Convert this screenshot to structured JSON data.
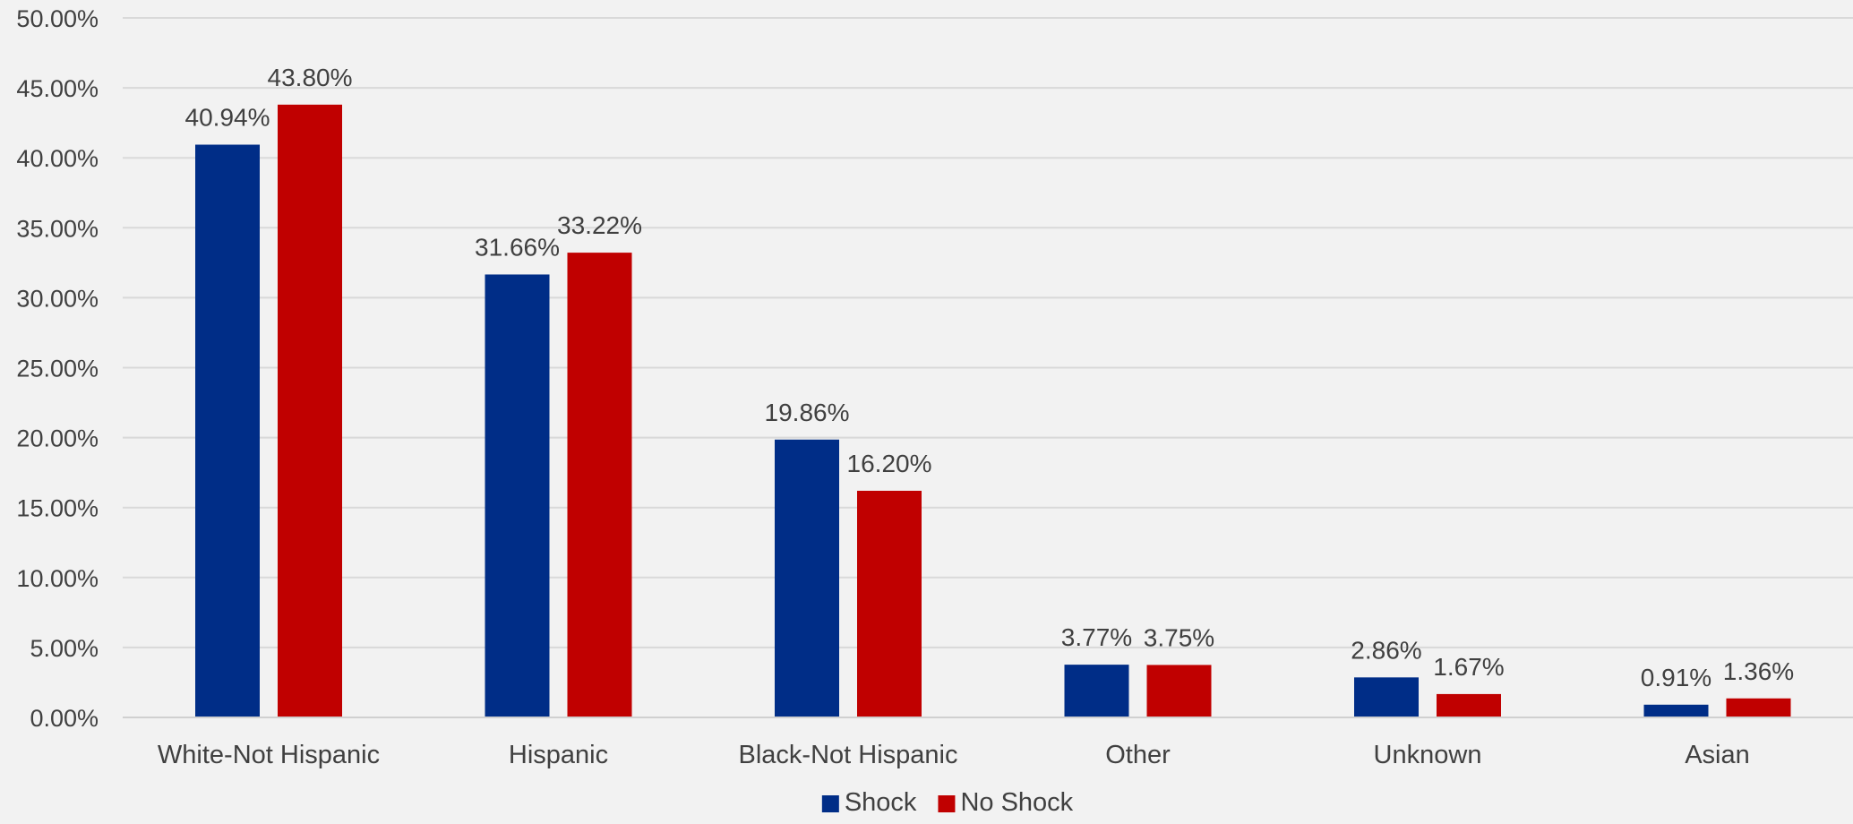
{
  "chart_data": {
    "type": "bar",
    "title": "",
    "xlabel": "",
    "ylabel": "",
    "categories": [
      "White-Not Hispanic",
      "Hispanic",
      "Black-Not Hispanic",
      "Other",
      "Unknown",
      "Asian"
    ],
    "series": [
      {
        "name": "Shock",
        "color": "#002d87",
        "values": [
          40.94,
          31.66,
          19.86,
          3.77,
          2.86,
          0.91
        ],
        "labels": [
          "40.94%",
          "31.66%",
          "19.86%",
          "3.77%",
          "2.86%",
          "0.91%"
        ]
      },
      {
        "name": "No Shock",
        "color": "#c00000",
        "values": [
          43.8,
          33.22,
          16.2,
          3.75,
          1.67,
          1.36
        ],
        "labels": [
          "43.80%",
          "33.22%",
          "16.20%",
          "3.75%",
          "1.67%",
          "1.36%"
        ]
      }
    ],
    "ylim": [
      0,
      50
    ],
    "yticks": [
      0,
      5,
      10,
      15,
      20,
      25,
      30,
      35,
      40,
      45,
      50
    ],
    "ytick_labels": [
      "0.00%",
      "5.00%",
      "10.00%",
      "15.00%",
      "20.00%",
      "25.00%",
      "30.00%",
      "35.00%",
      "40.00%",
      "45.00%",
      "50.00%"
    ],
    "grid": true,
    "legend_position": "bottom-center",
    "background_color": "#f2f2f2",
    "gridline_color": "#d9d9d9",
    "text_color": "#404040"
  }
}
